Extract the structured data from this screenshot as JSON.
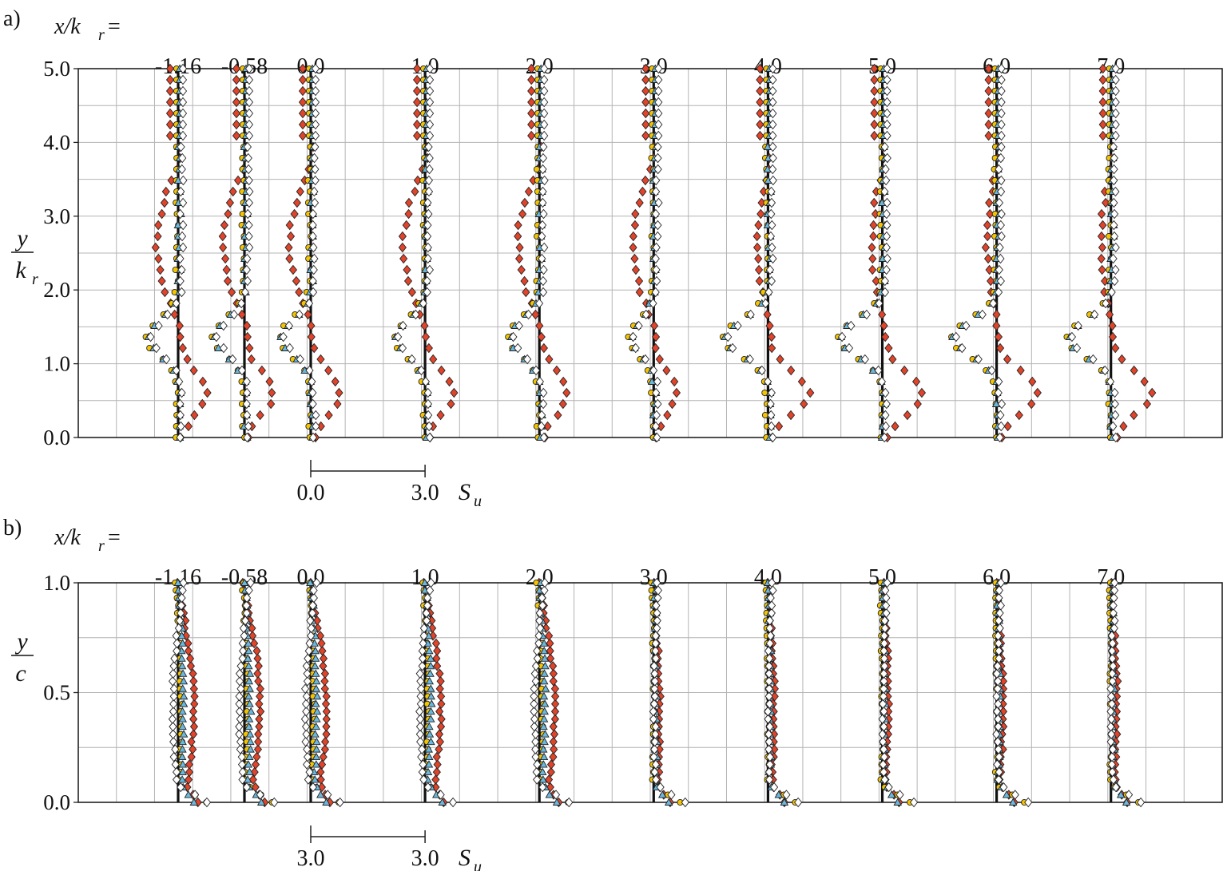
{
  "figure": {
    "colors": {
      "red": "#e0442a",
      "yellow": "#f5c400",
      "blue": "#6ab8de",
      "white": "#ffffff",
      "stroke": "#222222",
      "grid": "#b4b4b4"
    }
  },
  "chart_data": [
    {
      "type": "scatter",
      "panel_label": "a)",
      "station_label": "x/k",
      "station_label_sub": "r",
      "station_label_eq": "=",
      "stations": [
        "-1.16",
        "-0.58",
        "0.0",
        "1.0",
        "2.0",
        "3.0",
        "4.0",
        "5.0",
        "6.0",
        "7.0"
      ],
      "station_positions": [
        -1.16,
        -0.58,
        0.0,
        1.0,
        2.0,
        3.0,
        4.0,
        5.0,
        6.0,
        7.0
      ],
      "ylabel": "y",
      "ylabel_den": "k",
      "ylabel_den_sub": "r",
      "ylim": [
        0,
        5
      ],
      "yticks": [
        "0.0",
        "1.0",
        "2.0",
        "3.0",
        "4.0",
        "5.0"
      ],
      "scale_bar": {
        "left": "0.0",
        "right": "3.0",
        "unit": "S",
        "unit_sub": "u"
      },
      "grid": true,
      "series_markers": [
        "diamond",
        "circle",
        "triangle",
        "diamond"
      ],
      "series_colors": [
        "red",
        "yellow",
        "blue",
        "white"
      ]
    },
    {
      "type": "scatter",
      "panel_label": "b)",
      "station_label": "x/k",
      "station_label_sub": "r",
      "station_label_eq": "=",
      "stations": [
        "-1.16",
        "-0.58",
        "0.0",
        "1.0",
        "2.0",
        "3.0",
        "4.0",
        "5.0",
        "6.0",
        "7.0"
      ],
      "station_positions": [
        -1.16,
        -0.58,
        0.0,
        1.0,
        2.0,
        3.0,
        4.0,
        5.0,
        6.0,
        7.0
      ],
      "ylabel": "y",
      "ylabel_den": "c",
      "ylim": [
        0,
        1
      ],
      "yticks": [
        "0.0",
        "0.5",
        "1.0"
      ],
      "scale_bar": {
        "left": "3.0",
        "right": "3.0",
        "unit": "S",
        "unit_sub": "u"
      },
      "grid": true,
      "series_markers": [
        "diamond",
        "circle",
        "triangle",
        "diamond"
      ],
      "series_colors": [
        "red",
        "yellow",
        "blue",
        "white"
      ]
    }
  ]
}
